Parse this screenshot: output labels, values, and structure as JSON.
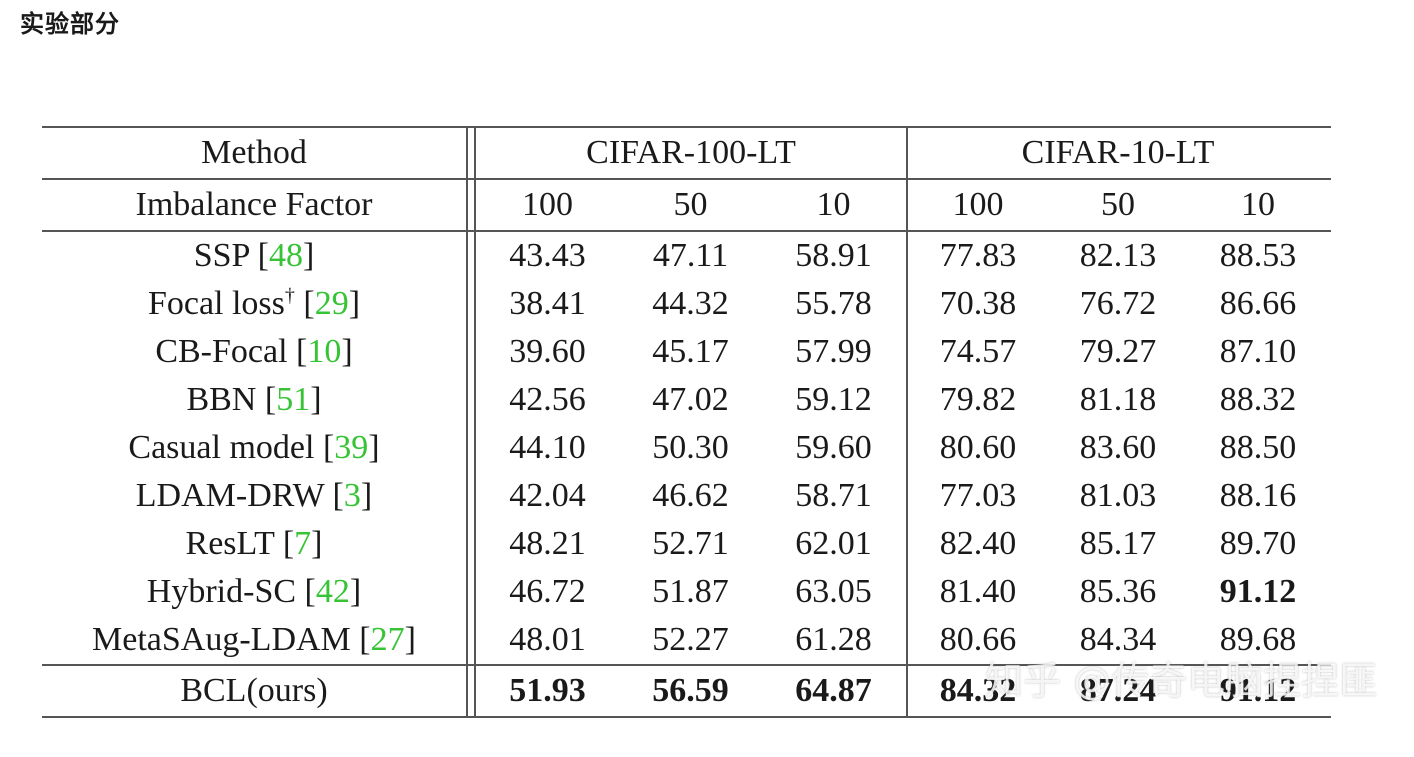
{
  "heading": "实验部分",
  "table": {
    "header": {
      "method": "Method",
      "group1": "CIFAR-100-LT",
      "group2": "CIFAR-10-LT",
      "imbalance_label": "Imbalance Factor",
      "factors": [
        "100",
        "50",
        "10",
        "100",
        "50",
        "10"
      ]
    },
    "rows": [
      {
        "name": "SSP ",
        "sup": "",
        "open": "[",
        "cite": "48",
        "close": "]",
        "values": [
          "43.43",
          "47.11",
          "58.91",
          "77.83",
          "82.13",
          "88.53"
        ]
      },
      {
        "name": "Focal loss",
        "sup": "†",
        "open": " [",
        "cite": "29",
        "close": "]",
        "values": [
          "38.41",
          "44.32",
          "55.78",
          "70.38",
          "76.72",
          "86.66"
        ]
      },
      {
        "name": "CB-Focal ",
        "sup": "",
        "open": "[",
        "cite": "10",
        "close": "]",
        "values": [
          "39.60",
          "45.17",
          "57.99",
          "74.57",
          "79.27",
          "87.10"
        ]
      },
      {
        "name": "BBN ",
        "sup": "",
        "open": "[",
        "cite": "51",
        "close": "]",
        "values": [
          "42.56",
          "47.02",
          "59.12",
          "79.82",
          "81.18",
          "88.32"
        ]
      },
      {
        "name": "Casual model ",
        "sup": "",
        "open": "[",
        "cite": "39",
        "close": "]",
        "values": [
          "44.10",
          "50.30",
          "59.60",
          "80.60",
          "83.60",
          "88.50"
        ]
      },
      {
        "name": "LDAM-DRW ",
        "sup": "",
        "open": "[",
        "cite": "3",
        "close": "]",
        "values": [
          "42.04",
          "46.62",
          "58.71",
          "77.03",
          "81.03",
          "88.16"
        ]
      },
      {
        "name": "ResLT ",
        "sup": "",
        "open": "[",
        "cite": "7",
        "close": "]",
        "values": [
          "48.21",
          "52.71",
          "62.01",
          "82.40",
          "85.17",
          "89.70"
        ]
      },
      {
        "name": "Hybrid-SC ",
        "sup": "",
        "open": "[",
        "cite": "42",
        "close": "]",
        "values": [
          "46.72",
          "51.87",
          "63.05",
          "81.40",
          "85.36",
          "91.12"
        ]
      },
      {
        "name": "MetaSAug-LDAM ",
        "sup": "",
        "open": "[",
        "cite": "27",
        "close": "]",
        "values": [
          "48.01",
          "52.27",
          "61.28",
          "80.66",
          "84.34",
          "89.68"
        ]
      }
    ],
    "final": {
      "name": "BCL(ours)",
      "values": [
        "51.93",
        "56.59",
        "64.87",
        "84.32",
        "87.24",
        "91.12"
      ]
    }
  },
  "watermark": "知乎 @传奇电脑捏捏匪",
  "colors": {
    "citation": "#36c436",
    "text": "#1a1a1a",
    "rule": "#555555"
  }
}
